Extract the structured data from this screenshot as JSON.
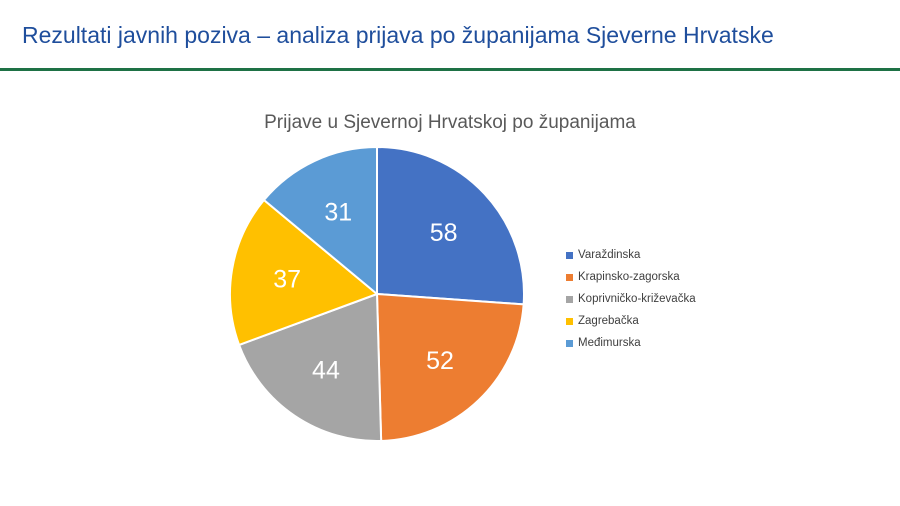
{
  "slide": {
    "title": "Rezultati javnih poziva – analiza prijava po županijama Sjeverne Hrvatske"
  },
  "colors": {
    "title": "#1f4e9c",
    "rule": "#1e7145"
  },
  "chart_data": {
    "type": "pie",
    "title": "Prijave u Sjevernoj Hrvatskoj po županijama",
    "legend_position": "right",
    "slices": [
      {
        "label": "Varaždinska",
        "value": 58,
        "color": "#4472c4"
      },
      {
        "label": "Krapinsko-zagorska",
        "value": 52,
        "color": "#ed7d31"
      },
      {
        "label": "Koprivničko-križevačka",
        "value": 44,
        "color": "#a5a5a5"
      },
      {
        "label": "Zagrebačka",
        "value": 37,
        "color": "#ffc000"
      },
      {
        "label": "Međimurska",
        "value": 31,
        "color": "#5b9bd5"
      }
    ]
  }
}
